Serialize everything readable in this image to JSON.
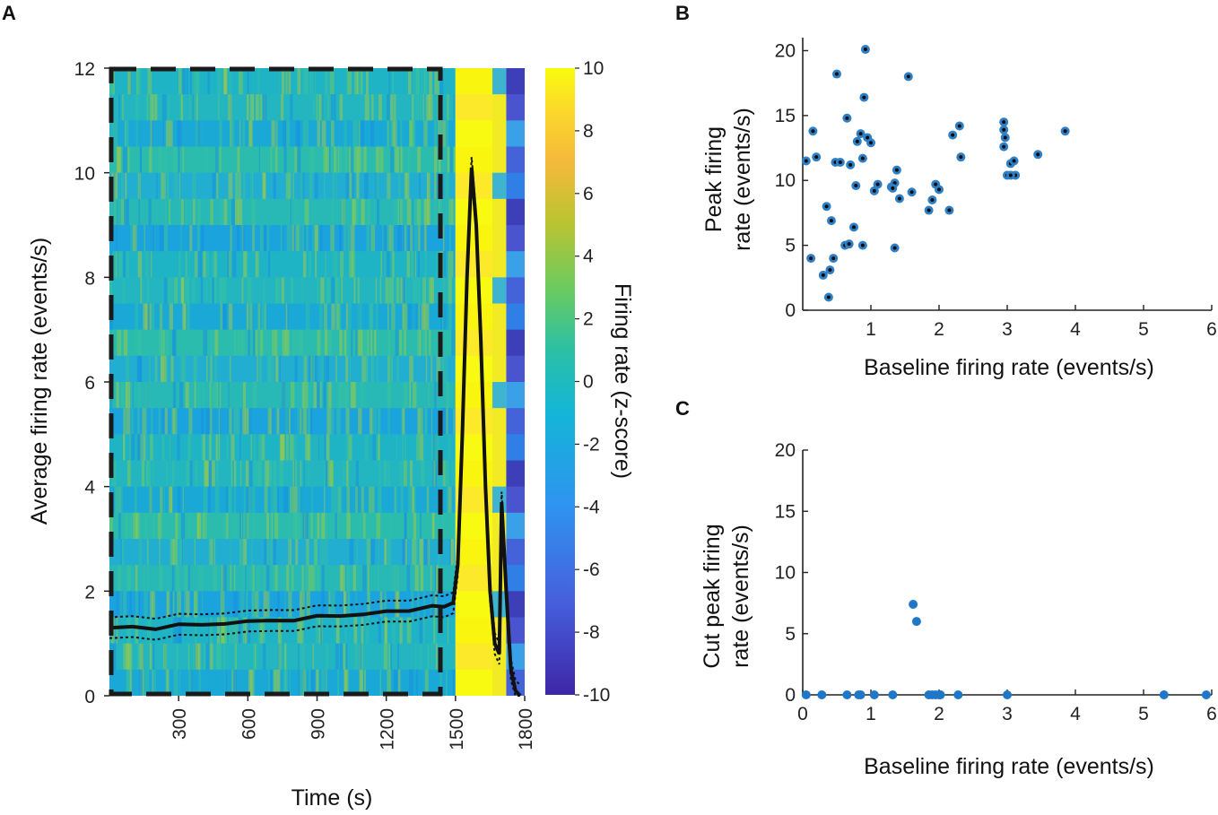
{
  "chart_data": [
    {
      "panel": "A",
      "type": "heatmap",
      "xlabel": "Time (s)",
      "ylabel": "Average firing rate  (events/s)",
      "xticks": [
        300,
        600,
        900,
        1200,
        1500,
        1800
      ],
      "xlim": [
        0,
        1800
      ],
      "yticks": [
        0,
        2,
        4,
        6,
        8,
        10,
        12
      ],
      "ylim": [
        0,
        12
      ],
      "baseline_window_end": 1440,
      "colorbar": {
        "label": "Firing rate (z-score)",
        "ticks": [
          10,
          8,
          6,
          4,
          2,
          0,
          -2,
          -4,
          -6,
          -8,
          -10
        ],
        "range": [
          -10,
          10
        ]
      },
      "mean_trace": {
        "x": [
          0,
          100,
          200,
          300,
          400,
          500,
          600,
          700,
          800,
          900,
          1000,
          1100,
          1200,
          1300,
          1400,
          1450,
          1490,
          1510,
          1530,
          1550,
          1570,
          1590,
          1610,
          1630,
          1650,
          1670,
          1690,
          1700,
          1720,
          1740,
          1760,
          1780
        ],
        "y": [
          1.3,
          1.3,
          1.3,
          1.35,
          1.35,
          1.4,
          1.4,
          1.45,
          1.45,
          1.5,
          1.55,
          1.55,
          1.6,
          1.65,
          1.7,
          1.7,
          1.8,
          2.5,
          5,
          8,
          10.1,
          9,
          6.8,
          4,
          2,
          1.0,
          0.8,
          3.7,
          2,
          0.5,
          0.1,
          0
        ],
        "sem": 0.2
      }
    },
    {
      "panel": "B",
      "type": "scatter",
      "xlabel": "Baseline firing rate (events/s)",
      "ylabel_lines": [
        "Peak firing",
        "rate (events/s)"
      ],
      "xticks": [
        1,
        2,
        3,
        4,
        5,
        6
      ],
      "xlim": [
        0,
        6
      ],
      "yticks": [
        0,
        5,
        10,
        15,
        20
      ],
      "ylim": [
        0,
        21
      ],
      "x": [
        0.05,
        0.15,
        0.2,
        0.12,
        0.3,
        0.4,
        0.45,
        0.5,
        0.48,
        0.35,
        0.38,
        0.42,
        0.55,
        0.65,
        0.7,
        0.75,
        0.8,
        0.85,
        0.9,
        0.92,
        0.88,
        0.95,
        1.0,
        0.78,
        0.62,
        0.68,
        1.05,
        1.1,
        1.3,
        1.35,
        1.38,
        1.32,
        1.42,
        1.55,
        1.6,
        1.85,
        1.9,
        1.95,
        2.0,
        2.15,
        2.2,
        2.3,
        2.32,
        2.95,
        2.95,
        2.97,
        2.95,
        3.0,
        3.05,
        3.1,
        3.12,
        3.05,
        3.45,
        3.85,
        1.35,
        0.88
      ],
      "y": [
        11.5,
        13.8,
        11.8,
        4.0,
        2.7,
        3.1,
        4.0,
        18.2,
        11.4,
        8.0,
        1.0,
        6.9,
        11.4,
        14.8,
        11.2,
        6.4,
        13.0,
        13.6,
        16.4,
        20.1,
        11.7,
        13.3,
        12.9,
        9.6,
        5.0,
        5.1,
        9.2,
        9.7,
        9.5,
        9.8,
        10.8,
        9.4,
        8.6,
        18.0,
        9.1,
        7.7,
        8.5,
        9.7,
        9.3,
        7.7,
        13.5,
        14.2,
        11.8,
        14.5,
        13.9,
        13.3,
        12.6,
        10.4,
        11.3,
        11.5,
        10.4,
        10.4,
        12.0,
        13.8,
        4.8,
        5.0
      ]
    },
    {
      "panel": "C",
      "type": "scatter",
      "xlabel": "Baseline firing rate (events/s)",
      "ylabel_lines": [
        "Cut peak firing",
        "rate (events/s)"
      ],
      "xticks": [
        0,
        1,
        2,
        3,
        4,
        5,
        6
      ],
      "xlim": [
        0,
        6
      ],
      "yticks": [
        0,
        5,
        10,
        15,
        20
      ],
      "ylim": [
        0,
        20
      ],
      "x": [
        0.05,
        0.28,
        0.65,
        0.82,
        0.85,
        1.05,
        1.32,
        1.85,
        1.9,
        1.95,
        2.0,
        2.02,
        2.28,
        3.0,
        5.3,
        5.92,
        1.62,
        1.67
      ],
      "y": [
        0,
        0,
        0,
        0,
        0,
        0,
        0,
        0,
        0,
        0,
        0,
        0,
        0,
        0,
        0,
        0,
        7.4,
        6.0
      ]
    }
  ],
  "panels": {
    "a": "A",
    "b": "B",
    "c": "C"
  },
  "colors": {
    "dot_b": "#2e7fc4",
    "dot_b_center": "#0a0a0a",
    "dot_c": "#1f77c8",
    "trace": "#111111"
  }
}
